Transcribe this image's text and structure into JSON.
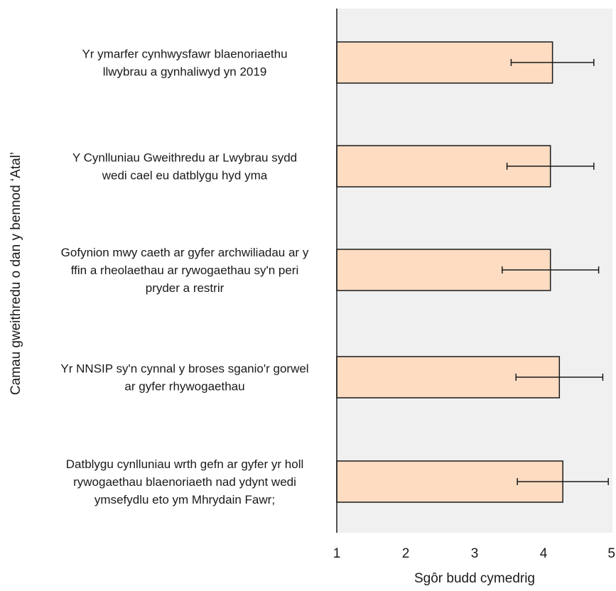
{
  "chart_data": {
    "type": "bar",
    "orientation": "horizontal",
    "categories": [
      [
        "Yr ymarfer cynhwysfawr blaenoriaethu",
        "llwybrau a gynhaliwyd yn 2019"
      ],
      [
        "Y Cynlluniau Gweithredu ar Lwybrau sydd",
        "wedi cael eu datblygu hyd yma"
      ],
      [
        "Gofynion mwy caeth ar gyfer archwiliadau ar y",
        "ffin a rheolaethau ar rywogaethau sy'n peri",
        "pryder a restrir"
      ],
      [
        "Yr NNSIP sy'n cynnal y broses sganio'r gorwel",
        "ar gyfer rhywogaethau"
      ],
      [
        "Datblygu cynlluniau wrth gefn ar gyfer yr holl",
        "rywogaethau blaenoriaeth nad ydynt wedi",
        "ymsefydlu eto ym Mhrydain Fawr;"
      ]
    ],
    "values": [
      4.13,
      4.1,
      4.1,
      4.23,
      4.28
    ],
    "error_low": [
      3.53,
      3.47,
      3.4,
      3.6,
      3.62
    ],
    "error_high": [
      4.73,
      4.73,
      4.8,
      4.86,
      4.94
    ],
    "xlim": [
      1,
      5
    ],
    "xticks": [
      1,
      2,
      3,
      4,
      5
    ],
    "xlabel": "Sgôr budd cymedrig",
    "ylabel": "Camau gweithredu o dan y bennod ‘Atal’",
    "bar_color": "#fddcc2",
    "bar_edge_color": "#1a1a1a",
    "plot_background": "#f0f0f0",
    "grid": false
  }
}
